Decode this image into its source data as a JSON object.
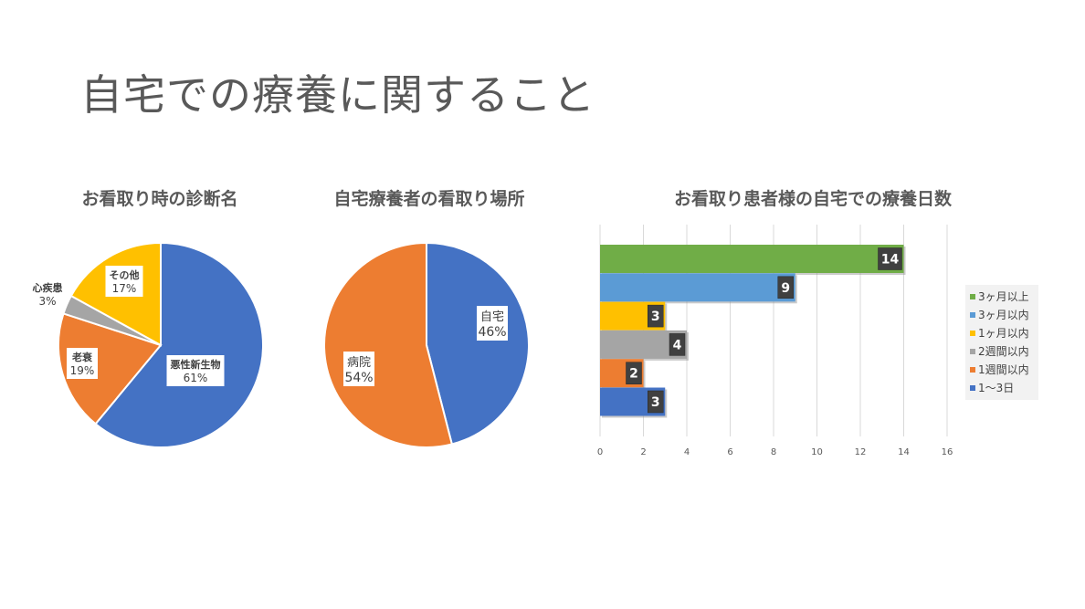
{
  "slide_title": "自宅での療養に関すること",
  "chart_data": [
    {
      "type": "pie",
      "title": "お看取り時の診断名",
      "slices": [
        {
          "name": "悪性新生物",
          "value": 61,
          "label": "61%",
          "color": "#4472C4"
        },
        {
          "name": "老衰",
          "value": 19,
          "label": "19%",
          "color": "#ED7D31"
        },
        {
          "name": "心疾患",
          "value": 3,
          "label": "3%",
          "color": "#A5A5A5"
        },
        {
          "name": "その他",
          "value": 17,
          "label": "17%",
          "color": "#FFC000"
        }
      ]
    },
    {
      "type": "pie",
      "title": "自宅療養者の看取り場所",
      "slices": [
        {
          "name": "自宅",
          "value": 46,
          "label": "46%",
          "color": "#4472C4"
        },
        {
          "name": "病院",
          "value": 54,
          "label": "54%",
          "color": "#ED7D31"
        }
      ]
    },
    {
      "type": "bar",
      "orientation": "horizontal",
      "title": "お看取り患者様の自宅での療養日数",
      "xlim": [
        0,
        16
      ],
      "x_ticks": [
        "0",
        "2",
        "4",
        "6",
        "8",
        "10",
        "12",
        "14",
        "16"
      ],
      "grid": true,
      "legend_position": "right",
      "series": [
        {
          "name": "3ヶ月以上",
          "value": 14,
          "color": "#70AD47"
        },
        {
          "name": "3ヶ月以内",
          "value": 9,
          "color": "#5B9BD5"
        },
        {
          "name": "1ヶ月以内",
          "value": 3,
          "color": "#FFC000"
        },
        {
          "name": "2週間以内",
          "value": 4,
          "color": "#A5A5A5"
        },
        {
          "name": "1週間以内",
          "value": 2,
          "color": "#ED7D31"
        },
        {
          "name": "1～3日",
          "value": 3,
          "color": "#4472C4"
        }
      ]
    }
  ]
}
